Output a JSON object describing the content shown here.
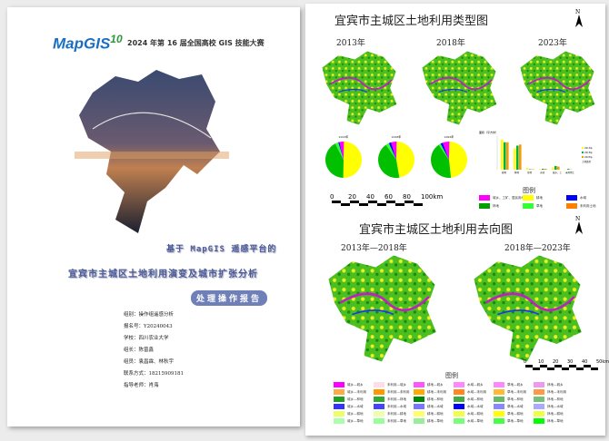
{
  "cover": {
    "logo": "MapGIS",
    "logo_version": "10",
    "contest": "2024 年第 16 届全国高校 GIS 技能大赛",
    "subtitle1": "基于 MapGIS 遥感平台的",
    "subtitle2": "宜宾市主城区土地利用演变及城市扩张分析",
    "badge": "处理操作报告",
    "info": [
      "组别：操作组遥感分析",
      "报名号：Y20240043",
      "学校：四川农业大学",
      "组长：陈曾鑫",
      "组员：袁昌霖、林秋宇",
      "联系方式：18215909181",
      "指导老师：肖海"
    ]
  },
  "poster": {
    "title1": "宜宾市主城区土地利用类型图",
    "years": [
      "2013年",
      "2018年",
      "2023年"
    ],
    "scale_labels": [
      "0",
      "20",
      "40",
      "60",
      "80",
      "100km"
    ],
    "legend_title": "图例",
    "legend": [
      {
        "label": "城乡、工矿、居民用地",
        "color": "#ff00ff"
      },
      {
        "label": "耕地",
        "color": "#ffff00"
      },
      {
        "label": "水域",
        "color": "#0000ff"
      },
      {
        "label": "林地",
        "color": "#00a000"
      },
      {
        "label": "草地",
        "color": "#33ff33"
      },
      {
        "label": "未利用土地",
        "color": "#ff8000"
      }
    ],
    "title2": "宜宾市主城区土地利用去向图",
    "periods": [
      "2013年—2018年",
      "2018年—2023年"
    ],
    "scale2_labels": [
      "0",
      "10",
      "20",
      "30",
      "40",
      "50km"
    ],
    "legend2_title": "图例",
    "legend2_colors": [
      "#ff00ff",
      "#ffdde8",
      "#ff55ff",
      "#ff88ff",
      "#ff88ff",
      "#ee99ee",
      "#ffaa44",
      "#ff9900",
      "#ffaa00",
      "#ff8822",
      "#ffbb33",
      "#ff9944",
      "#22a022",
      "#33aa33",
      "#008800",
      "#44aa44",
      "#66bb66",
      "#77c077",
      "#3333ff",
      "#4444ff",
      "#7777ff",
      "#0000ff",
      "#8888ff",
      "#aaaaff",
      "#eeff66",
      "#eeffaa",
      "#ffff66",
      "#eeff44",
      "#ffff00",
      "#eeff44",
      "#aaffaa",
      "#99ff99",
      "#99ee99",
      "#77ff77",
      "#44ff44",
      "#00ff00"
    ],
    "legend2_from": [
      "城乡",
      "未利用",
      "耕地",
      "水域",
      "草地",
      "林地"
    ],
    "legend2_to": [
      "城乡",
      "未利用",
      "林地",
      "水域",
      "耕地",
      "草地"
    ]
  },
  "chart_data": [
    {
      "type": "pie",
      "title": "2013年",
      "categories": [
        "耕地",
        "林地",
        "草地",
        "水域",
        "城乡、工矿、居民用地"
      ],
      "values": [
        50,
        42,
        3,
        1,
        4
      ]
    },
    {
      "type": "pie",
      "title": "2018年",
      "categories": [
        "耕地",
        "林地",
        "草地",
        "水域",
        "城乡、工矿、居民用地"
      ],
      "values": [
        47,
        43,
        3,
        2,
        5
      ]
    },
    {
      "type": "pie",
      "title": "2023年",
      "categories": [
        "耕地",
        "林地",
        "草地",
        "水域",
        "城乡、工矿、居民用地"
      ],
      "values": [
        48,
        42,
        2,
        2,
        6
      ]
    },
    {
      "type": "bar",
      "ylabel": "面积（平方米）",
      "categories": [
        "耕地",
        "林地",
        "草地",
        "水域",
        "城乡、工矿、居民用地",
        "未利用土地"
      ],
      "series": [
        {
          "name": "2013年",
          "values": [
            2700,
            1900,
            150,
            60,
            200,
            20
          ]
        },
        {
          "name": "2018年",
          "values": [
            2450,
            2150,
            40,
            80,
            330,
            70
          ]
        },
        {
          "name": "2023年",
          "values": [
            2450,
            2250,
            40,
            80,
            280,
            20
          ]
        }
      ],
      "legend_title": "土地类型",
      "ylim": [
        0,
        3000
      ]
    }
  ]
}
